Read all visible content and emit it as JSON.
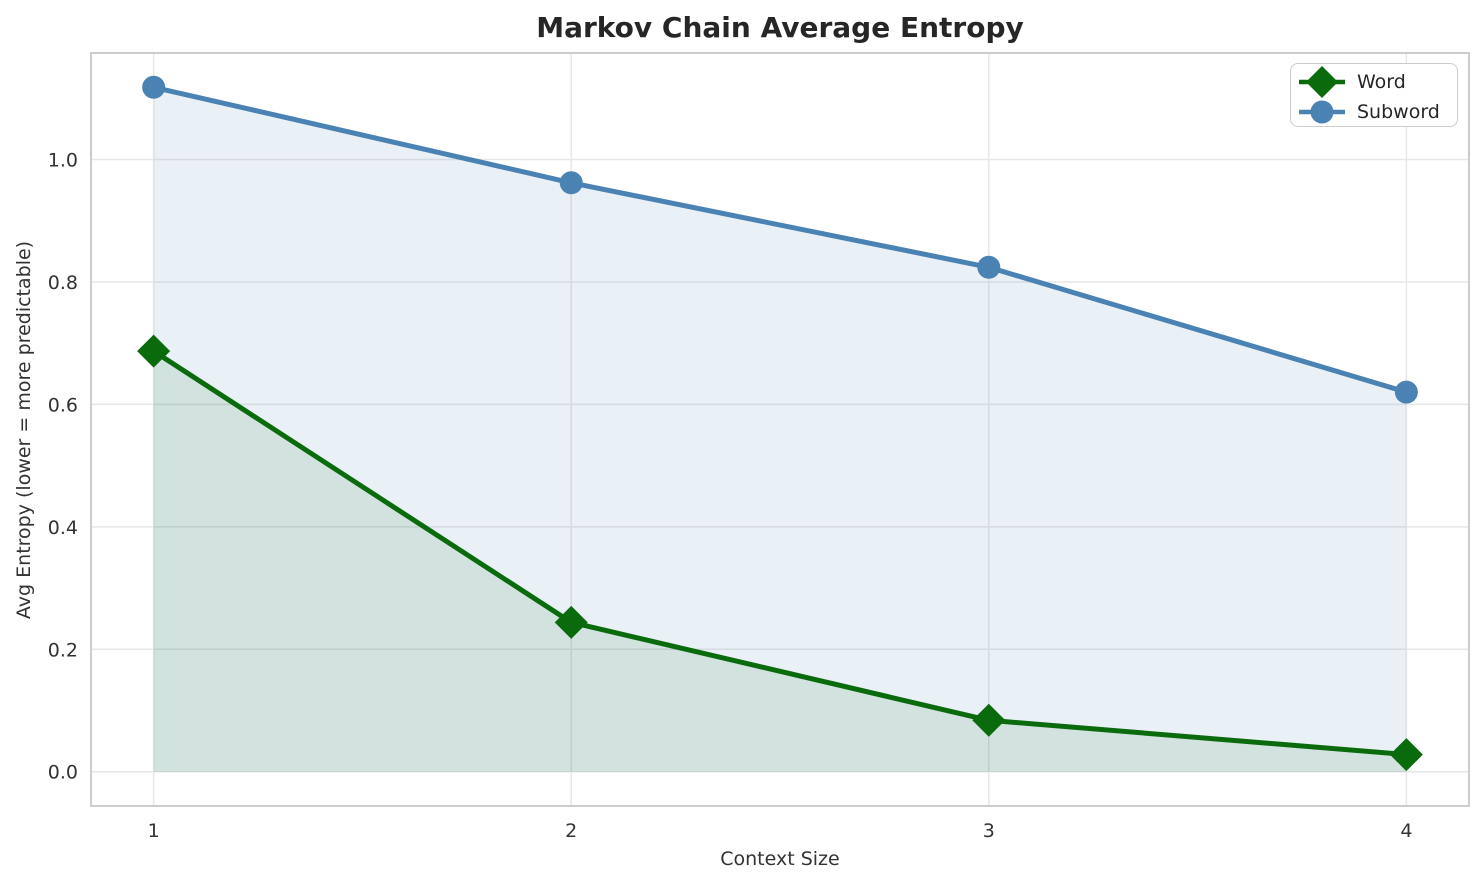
{
  "chart_data": {
    "type": "line",
    "title": "Markov Chain Average Entropy",
    "xlabel": "Context Size",
    "ylabel": "Avg Entropy (lower = more predictable)",
    "x": [
      1,
      2,
      3,
      4
    ],
    "series": [
      {
        "name": "Word",
        "color": "#0a6b0d",
        "marker": "diamond",
        "values": [
          0.687,
          0.244,
          0.084,
          0.028
        ],
        "fill_to_zero": true,
        "fill_opacity": 0.1
      },
      {
        "name": "Subword",
        "color": "#4a82b4",
        "marker": "circle",
        "values": [
          1.118,
          0.962,
          0.824,
          0.62
        ],
        "fill_to_zero": true,
        "fill_opacity": 0.12
      }
    ],
    "x_ticks": [
      "1",
      "2",
      "3",
      "4"
    ],
    "y_ticks": [
      "0.0",
      "0.2",
      "0.4",
      "0.6",
      "0.8",
      "1.0"
    ],
    "xlim": [
      0.85,
      4.15
    ],
    "ylim": [
      -0.056,
      1.174
    ],
    "grid": true,
    "legend_position": "upper right",
    "grid_color": "#e7e7e7",
    "frame_color": "#cdcdcd",
    "tick_color": "#333333"
  }
}
